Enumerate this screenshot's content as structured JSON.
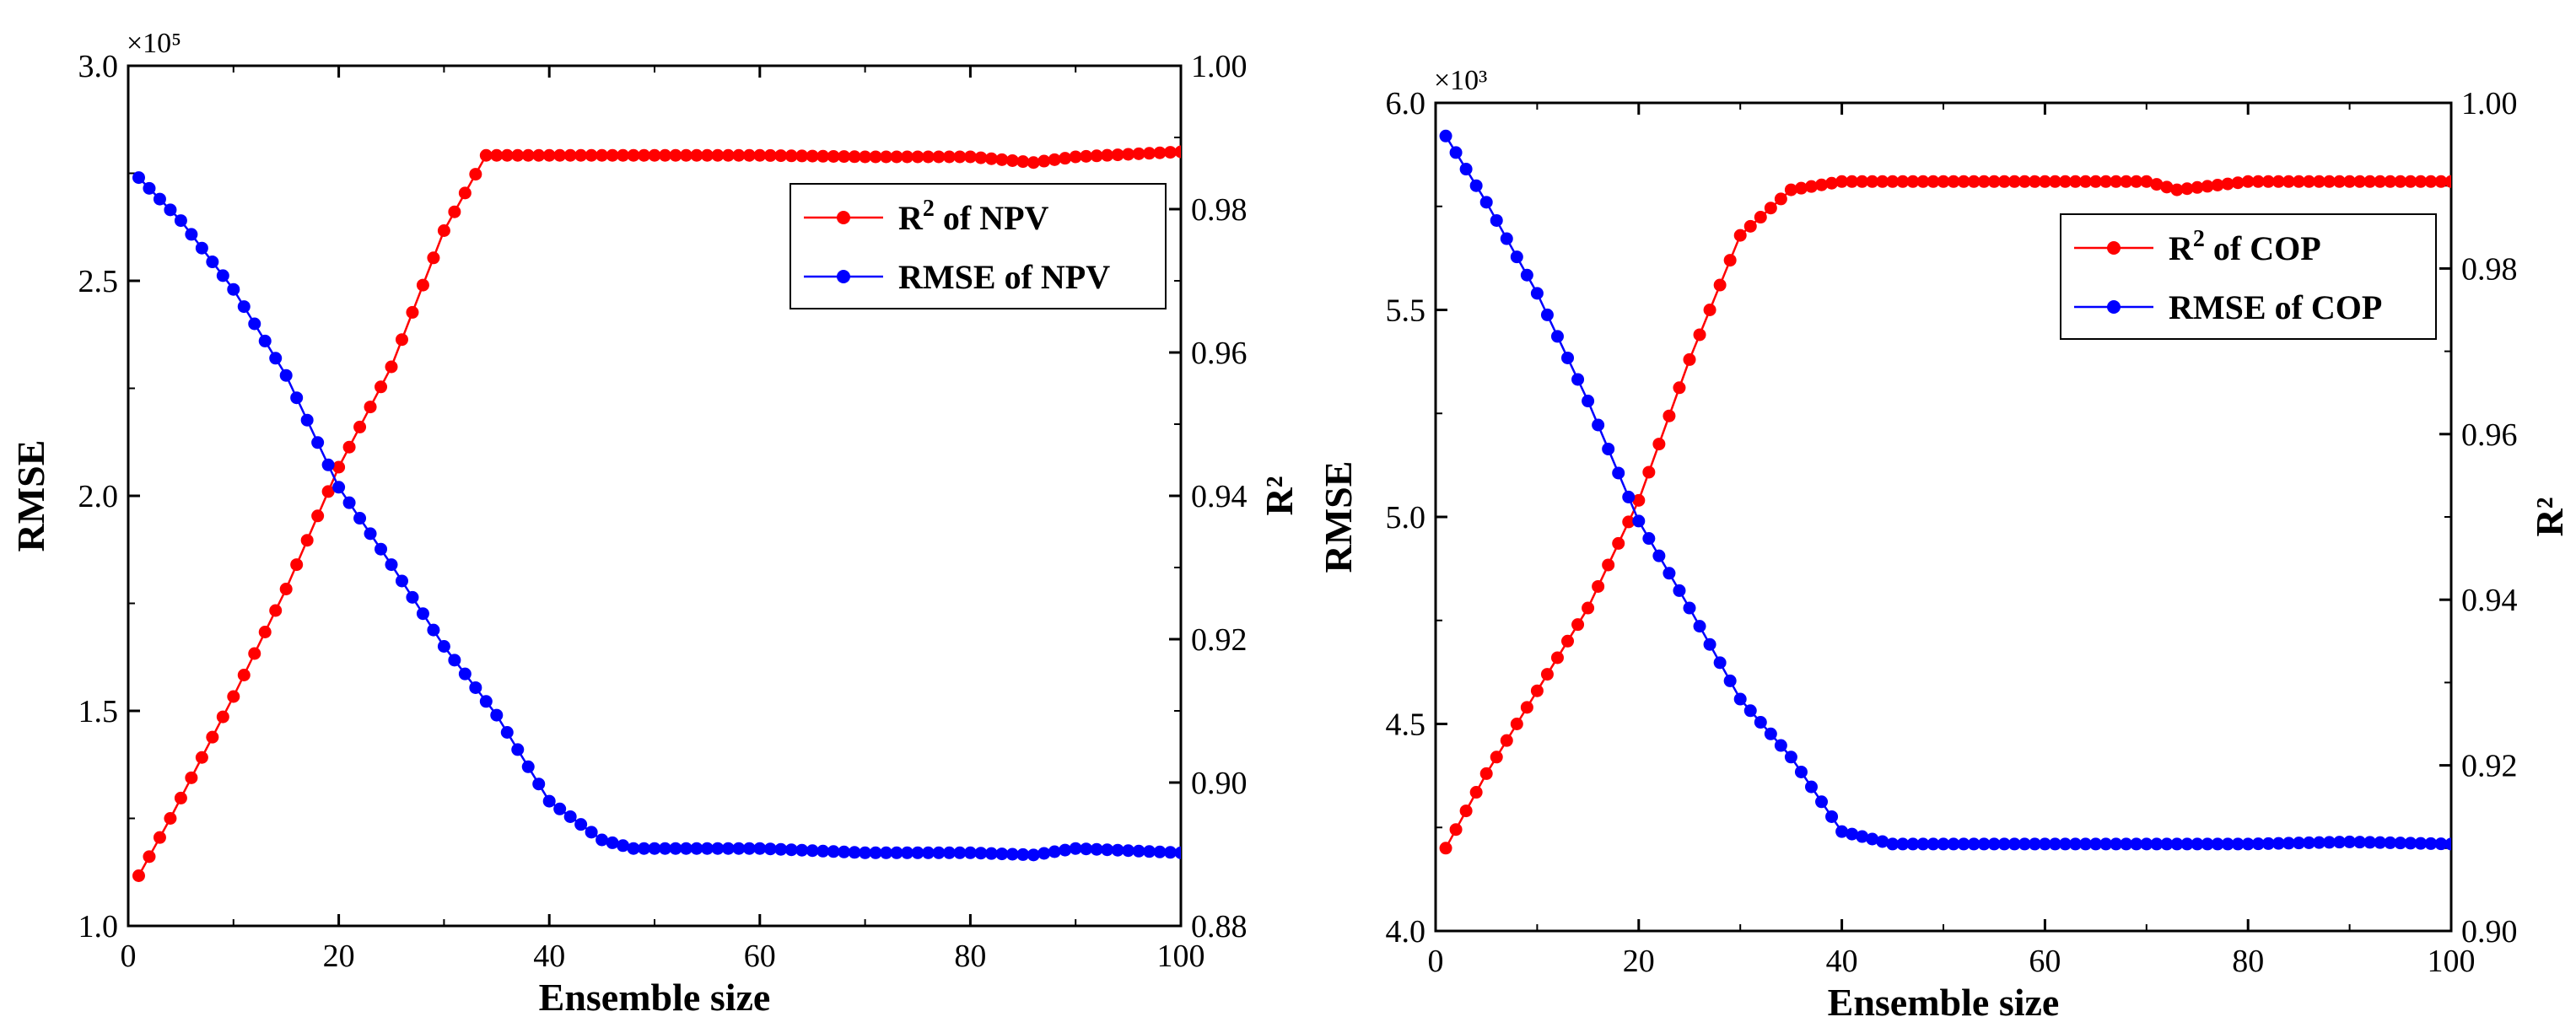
{
  "chart_data": [
    {
      "type": "line",
      "xlabel": "Ensemble size",
      "ylabel": "RMSE",
      "y2label": "R²",
      "xlim": [
        0,
        100
      ],
      "ylim": [
        1.0,
        3.0
      ],
      "y2lim": [
        0.88,
        1.0
      ],
      "xticks": [
        "0",
        "20",
        "40",
        "60",
        "80",
        "100"
      ],
      "yticks": [
        "1.0",
        "1.5",
        "2.0",
        "2.5",
        "3.0"
      ],
      "y2ticks": [
        "0.88",
        "0.90",
        "0.92",
        "0.94",
        "0.96",
        "0.98",
        "1.00"
      ],
      "y_multiplier": "×10⁵",
      "legend_position": "top-right",
      "series": [
        {
          "name": "R² of NPV",
          "label_main": "R",
          "label_sup": "2",
          "label_rest": " of NPV",
          "color": "#ff0000",
          "axis": "right",
          "anchors": [
            [
              1,
              0.887
            ],
            [
              4,
              0.895
            ],
            [
              10,
              0.912
            ],
            [
              15,
              0.927
            ],
            [
              20,
              0.944
            ],
            [
              25,
              0.958
            ],
            [
              30,
              0.977
            ],
            [
              34,
              0.9875
            ],
            [
              40,
              0.9875
            ],
            [
              50,
              0.9875
            ],
            [
              60,
              0.9875
            ],
            [
              70,
              0.9873
            ],
            [
              80,
              0.9873
            ],
            [
              86,
              0.9865
            ],
            [
              90,
              0.9873
            ],
            [
              100,
              0.988
            ]
          ]
        },
        {
          "name": "RMSE of NPV",
          "label_main": "RMSE of NPV",
          "label_sup": "",
          "label_rest": "",
          "color": "#0000ff",
          "axis": "left",
          "anchors": [
            [
              1,
              2.74
            ],
            [
              5,
              2.64
            ],
            [
              10,
              2.48
            ],
            [
              15,
              2.28
            ],
            [
              20,
              2.02
            ],
            [
              25,
              1.84
            ],
            [
              30,
              1.65
            ],
            [
              35,
              1.49
            ],
            [
              40,
              1.29
            ],
            [
              45,
              1.2
            ],
            [
              48,
              1.18
            ],
            [
              55,
              1.18
            ],
            [
              60,
              1.18
            ],
            [
              70,
              1.17
            ],
            [
              80,
              1.17
            ],
            [
              86,
              1.165
            ],
            [
              90,
              1.18
            ],
            [
              100,
              1.17
            ]
          ]
        }
      ]
    },
    {
      "type": "line",
      "xlabel": "Ensemble size",
      "ylabel": "RMSE",
      "y2label": "R²",
      "xlim": [
        0,
        100
      ],
      "ylim": [
        4.0,
        6.0
      ],
      "y2lim": [
        0.9,
        1.0
      ],
      "xticks": [
        "0",
        "20",
        "40",
        "60",
        "80",
        "100"
      ],
      "yticks": [
        "4.0",
        "4.5",
        "5.0",
        "5.5",
        "6.0"
      ],
      "y2ticks": [
        "0.90",
        "0.92",
        "0.94",
        "0.96",
        "0.98",
        "1.00"
      ],
      "y_multiplier": "×10³",
      "legend_position": "top-right",
      "series": [
        {
          "name": "R² of COP",
          "label_main": "R",
          "label_sup": "2",
          "label_rest": " of COP",
          "color": "#ff0000",
          "axis": "right",
          "anchors": [
            [
              1,
              0.91
            ],
            [
              5,
              0.919
            ],
            [
              10,
              0.929
            ],
            [
              15,
              0.939
            ],
            [
              20,
              0.952
            ],
            [
              25,
              0.969
            ],
            [
              30,
              0.984
            ],
            [
              35,
              0.9895
            ],
            [
              40,
              0.9905
            ],
            [
              50,
              0.9905
            ],
            [
              60,
              0.9905
            ],
            [
              70,
              0.9905
            ],
            [
              73,
              0.9895
            ],
            [
              80,
              0.9905
            ],
            [
              100,
              0.9905
            ]
          ]
        },
        {
          "name": "RMSE of COP",
          "label_main": "RMSE of COP",
          "label_sup": "",
          "label_rest": "",
          "color": "#0000ff",
          "axis": "left",
          "anchors": [
            [
              1,
              5.92
            ],
            [
              5,
              5.76
            ],
            [
              10,
              5.54
            ],
            [
              15,
              5.28
            ],
            [
              20,
              4.99
            ],
            [
              25,
              4.78
            ],
            [
              30,
              4.56
            ],
            [
              35,
              4.42
            ],
            [
              40,
              4.24
            ],
            [
              45,
              4.21
            ],
            [
              50,
              4.21
            ],
            [
              60,
              4.21
            ],
            [
              70,
              4.21
            ],
            [
              80,
              4.21
            ],
            [
              90,
              4.215
            ],
            [
              100,
              4.21
            ]
          ]
        }
      ]
    }
  ]
}
